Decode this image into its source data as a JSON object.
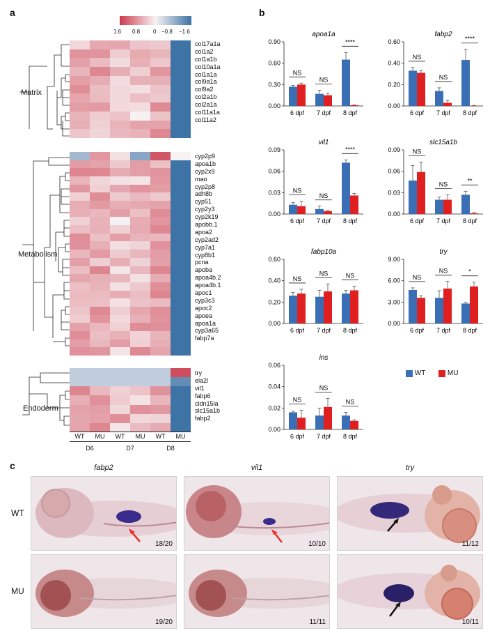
{
  "panel_labels": {
    "a": "a",
    "b": "b",
    "c": "c"
  },
  "heatmap": {
    "colorbar_ticks": [
      "1.6",
      "0.8",
      "0",
      "−0.8",
      "−1.6"
    ],
    "colors": {
      "high": "#cc3b4d",
      "mid": "#f7f3f3",
      "low": "#3e73a6"
    },
    "columns": [
      "WT",
      "MU",
      "WT",
      "MU",
      "WT",
      "MU"
    ],
    "days": [
      "D6",
      "D7",
      "D8"
    ],
    "groups": [
      {
        "name": "Matrix",
        "genes": [
          "col17a1a",
          "col1a2",
          "col1a1b",
          "col10a1a",
          "col1a1a",
          "col9a1a",
          "col9a2",
          "col2a1b",
          "col2a1a",
          "col11a1a",
          "col11a2"
        ]
      },
      {
        "name": "Metabolism",
        "genes": [
          "cyp2p9",
          "apoa1b",
          "cyp2x9",
          "mao",
          "cyp2p8",
          "adh8b",
          "cyp51",
          "cyp2y3",
          "cyp2k19",
          "apobb.1",
          "apoa2",
          "cyp2ad2",
          "cyp7a1",
          "cyp8b1",
          "pcna",
          "apoba",
          "apoa4b.2",
          "apoa4b.1",
          "apoc1",
          "cyp3c3",
          "apoc2",
          "apoea",
          "apoa1a",
          "cyp3a65",
          "fabp7a"
        ]
      },
      {
        "name": "Endoderm",
        "genes": [
          "try",
          "ela2l",
          "vil1",
          "fabp6",
          "cldn15la",
          "slc15a1b",
          "fabp2"
        ]
      }
    ]
  },
  "chart_data": [
    {
      "type": "bar",
      "title": "apoa1a",
      "categories": [
        "6 dpf",
        "7 dpf",
        "8 dpf"
      ],
      "ylim": [
        0,
        0.9
      ],
      "yticks": [
        "0.00",
        "0.30",
        "0.60",
        "0.90"
      ],
      "series": [
        {
          "name": "WT",
          "values": [
            0.27,
            0.17,
            0.65
          ],
          "err": [
            0.02,
            0.05,
            0.1
          ]
        },
        {
          "name": "MU",
          "values": [
            0.3,
            0.15,
            0.01
          ],
          "err": [
            0.02,
            0.03,
            0.005
          ]
        }
      ],
      "sig": [
        "NS",
        "NS",
        "****"
      ]
    },
    {
      "type": "bar",
      "title": "fabp2",
      "categories": [
        "6 dpf",
        "7 dpf",
        "8 dpf"
      ],
      "ylim": [
        0,
        0.6
      ],
      "yticks": [
        "0.00",
        "0.20",
        "0.40",
        "0.60"
      ],
      "series": [
        {
          "name": "WT",
          "values": [
            0.33,
            0.14,
            0.43
          ],
          "err": [
            0.03,
            0.03,
            0.1
          ]
        },
        {
          "name": "MU",
          "values": [
            0.31,
            0.03,
            0.003
          ],
          " err": [
            0,
            0,
            0
          ],
          "err": [
            0.02,
            0.02,
            0.002
          ]
        }
      ],
      "sig": [
        "NS",
        "NS",
        "****"
      ]
    },
    {
      "type": "bar",
      "title": "vil1",
      "categories": [
        "6 dpf",
        "7 dpf",
        "8 dpf"
      ],
      "ylim": [
        0,
        0.09
      ],
      "yticks": [
        "0.00",
        "0.03",
        "0.06",
        "0.09"
      ],
      "series": [
        {
          "name": "WT",
          "values": [
            0.013,
            0.007,
            0.072
          ],
          "err": [
            0.003,
            0.004,
            0.004
          ]
        },
        {
          "name": "MU",
          "values": [
            0.011,
            0.004,
            0.026
          ],
          "err": [
            0.007,
            0.001,
            0.003
          ]
        }
      ],
      "sig": [
        "NS",
        "NS",
        "****"
      ]
    },
    {
      "type": "bar",
      "title": "slc15a1b",
      "categories": [
        "6 dpf",
        "7 dpf",
        "8 dpf"
      ],
      "ylim": [
        0,
        0.09
      ],
      "yticks": [
        "0.00",
        "0.03",
        "0.06",
        "0.09"
      ],
      "series": [
        {
          "name": "WT",
          "values": [
            0.047,
            0.02,
            0.027
          ],
          "err": [
            0.021,
            0.004,
            0.005
          ]
        },
        {
          "name": "MU",
          "values": [
            0.059,
            0.02,
            0.001
          ],
          "err": [
            0.014,
            0.007,
            0.001
          ]
        }
      ],
      "sig": [
        "NS",
        "NS",
        "**"
      ]
    },
    {
      "type": "bar",
      "title": "fabp10a",
      "categories": [
        "6 dpf",
        "7 dpf",
        "8 dpf"
      ],
      "ylim": [
        0,
        0.6
      ],
      "yticks": [
        "0.00",
        "0.20",
        "0.40",
        "0.60"
      ],
      "series": [
        {
          "name": "WT",
          "values": [
            0.26,
            0.25,
            0.28
          ],
          "err": [
            0.03,
            0.06,
            0.03
          ]
        },
        {
          "name": "MU",
          "values": [
            0.28,
            0.3,
            0.31
          ],
          "err": [
            0.04,
            0.07,
            0.04
          ]
        }
      ],
      "sig": [
        "NS",
        "NS",
        "NS"
      ]
    },
    {
      "type": "bar",
      "title": "try",
      "categories": [
        "6 dpf",
        "7 dpf",
        "8 dpf"
      ],
      "ylim": [
        0,
        9
      ],
      "yticks": [
        "0.00",
        "3.00",
        "6.00",
        "9.00"
      ],
      "series": [
        {
          "name": "WT",
          "values": [
            4.7,
            3.6,
            2.8
          ],
          "err": [
            0.3,
            1.0,
            0.2
          ]
        },
        {
          "name": "MU",
          "values": [
            3.6,
            4.9,
            5.2
          ],
          "err": [
            0.3,
            1.0,
            0.6
          ]
        }
      ],
      "sig": [
        "NS",
        "NS",
        "*"
      ]
    },
    {
      "type": "bar",
      "title": "ins",
      "categories": [
        "6 dpf",
        "7 dpf",
        "8 dpf"
      ],
      "ylim": [
        0,
        0.06
      ],
      "yticks": [
        "0.00",
        "0.02",
        "0.04",
        "0.06"
      ],
      "series": [
        {
          "name": "WT",
          "values": [
            0.016,
            0.013,
            0.013
          ],
          "err": [
            0.001,
            0.007,
            0.003
          ]
        },
        {
          "name": "MU",
          "values": [
            0.011,
            0.021,
            0.008
          ],
          "err": [
            0.007,
            0.008,
            0.001
          ]
        }
      ],
      "sig": [
        "NS",
        "NS",
        "NS"
      ]
    }
  ],
  "legend": [
    {
      "name": "WT",
      "color": "#3a6fb5"
    },
    {
      "name": "MU",
      "color": "#e02020"
    }
  ],
  "panel_c": {
    "columns": [
      "fabp2",
      "vil1",
      "try"
    ],
    "rows": [
      "WT",
      "MU"
    ],
    "counts": [
      [
        "18/20",
        "10/10",
        "11/12"
      ],
      [
        "19/20",
        "11/11",
        "10/11"
      ]
    ],
    "arrow_colors": [
      "#e6322a",
      "#e6322a",
      "#111111"
    ]
  }
}
